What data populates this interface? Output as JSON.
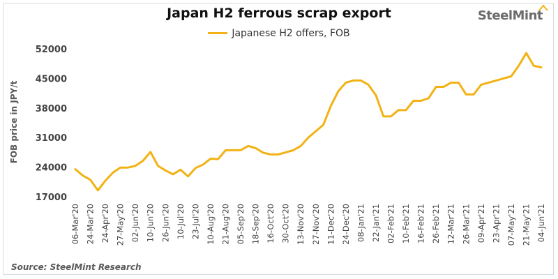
{
  "header": {
    "title": "Japan H2 ferrous scrap export",
    "brand": "SteelMint"
  },
  "footer": {
    "source": "Source: SteelMint Research"
  },
  "colors": {
    "series": "#f2b213",
    "brand": "#6b6b6b"
  },
  "chart_data": {
    "type": "line",
    "title": "Japan H2 ferrous scrap export",
    "ylabel": "FOB price in JPY/t",
    "xlabel": "",
    "ylim": [
      17000,
      52000
    ],
    "yticks": [
      17000,
      24000,
      31000,
      38000,
      45000,
      52000
    ],
    "grid": false,
    "legend": "top-center",
    "x_tick_labels": [
      "06-Mar'20",
      "24-Mar'20",
      "24-Apr'20",
      "27-May'20",
      "02-Jun'20",
      "10-Jun'20",
      "26-Jun'20",
      "10-Jul'20",
      "23-Jul'20",
      "10-Aug'20",
      "21-Aug'20",
      "05-Sep'20",
      "18-Sep'20",
      "16-Oct'20",
      "30-Oct'20",
      "13-Nov'20",
      "27-Nov'20",
      "11-Dec'20",
      "24-Dec'20",
      "08-Jan'21",
      "22-Jan'21",
      "02-Feb'21",
      "10-Feb'21",
      "16-Feb'21",
      "26-Feb'21",
      "12-Mar'21",
      "26-Mar'21",
      "09-Apr'21",
      "23-Apr'21",
      "07-May'21",
      "21-May'21",
      "04-Jun'21"
    ],
    "series": [
      {
        "name": "Japanese H2 offers, FOB",
        "values": [
          23500,
          22000,
          21000,
          18500,
          20800,
          22700,
          23900,
          23900,
          24300,
          25500,
          27600,
          24300,
          23200,
          22300,
          23400,
          21800,
          23800,
          24600,
          26000,
          25900,
          28000,
          28000,
          28000,
          29000,
          28500,
          27400,
          27000,
          27000,
          27500,
          28000,
          29000,
          31000,
          32500,
          34000,
          38500,
          42000,
          44000,
          44500,
          44500,
          43500,
          41000,
          36000,
          36000,
          37500,
          37500,
          39700,
          39700,
          40300,
          43000,
          43000,
          44000,
          44000,
          41200,
          41200,
          43500,
          44000,
          44500,
          45000,
          45500,
          48000,
          51000,
          48000,
          47600
        ]
      }
    ]
  }
}
